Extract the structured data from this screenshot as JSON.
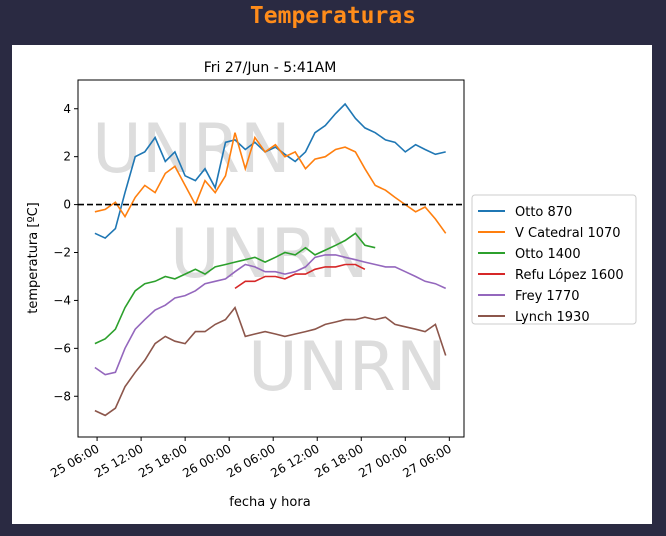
{
  "page": {
    "title": "Temperaturas",
    "title_color": "#ff8c1a"
  },
  "chart_data": {
    "type": "line",
    "title": "Fri 27/Jun - 5:41AM",
    "xlabel": "fecha y hora",
    "ylabel": "temperatura [ºC]",
    "watermark": "UNRN",
    "x_units": "hours since 25 00:00",
    "xlim": [
      3.4,
      56.0
    ],
    "ylim": [
      -9.7,
      5.2
    ],
    "xticks": [
      6,
      12,
      18,
      24,
      30,
      36,
      42,
      48,
      54
    ],
    "xtick_labels": [
      "25 06:00",
      "25 12:00",
      "25 18:00",
      "26 00:00",
      "26 06:00",
      "26 12:00",
      "26 18:00",
      "27 00:00",
      "27 06:00"
    ],
    "yticks": [
      4,
      2,
      0,
      -2,
      -4,
      -6,
      -8
    ],
    "ytick_labels": [
      "4",
      "2",
      "0",
      "−2",
      "−4",
      "−6",
      "−8"
    ],
    "reference_line": {
      "y": 0,
      "style": "dashed",
      "color": "#000000"
    },
    "legend_position": "center-right-outside",
    "x": [
      5.7,
      7.1,
      8.5,
      9.8,
      11.2,
      12.5,
      13.9,
      15.3,
      16.6,
      18.0,
      19.4,
      20.7,
      22.1,
      23.5,
      24.8,
      26.2,
      27.5,
      28.9,
      30.3,
      31.6,
      33.0,
      34.4,
      35.7,
      37.1,
      38.5,
      39.8,
      41.2,
      42.5,
      43.9,
      45.3,
      46.6,
      48.0,
      49.4,
      50.7,
      52.1,
      53.5
    ],
    "series": [
      {
        "name": "Otto 870",
        "color": "#1f77b4",
        "values": [
          -1.2,
          -1.4,
          -1.0,
          0.5,
          2.0,
          2.2,
          2.8,
          1.8,
          2.2,
          1.2,
          1.0,
          1.5,
          0.7,
          2.6,
          2.7,
          2.3,
          2.6,
          2.2,
          2.4,
          2.1,
          1.8,
          2.2,
          3.0,
          3.3,
          3.8,
          4.2,
          3.6,
          3.2,
          3.0,
          2.7,
          2.6,
          2.2,
          2.5,
          2.3,
          2.1,
          2.2
        ]
      },
      {
        "name": "V Catedral 1070",
        "color": "#ff7f0e",
        "values": [
          -0.3,
          -0.2,
          0.1,
          -0.5,
          0.3,
          0.8,
          0.5,
          1.3,
          1.6,
          0.8,
          0.0,
          1.0,
          0.5,
          1.2,
          3.0,
          1.5,
          2.8,
          2.2,
          2.5,
          2.0,
          2.2,
          1.5,
          1.9,
          2.0,
          2.3,
          2.4,
          2.2,
          1.5,
          0.8,
          0.6,
          0.3,
          0.0,
          -0.3,
          -0.1,
          -0.6,
          -1.2
        ]
      },
      {
        "name": "Otto 1400",
        "color": "#2ca02c",
        "values": [
          -5.8,
          -5.6,
          -5.2,
          -4.3,
          -3.6,
          -3.3,
          -3.2,
          -3.0,
          -3.1,
          -2.9,
          -2.7,
          -2.9,
          -2.6,
          -2.5,
          -2.4,
          -2.3,
          -2.2,
          -2.4,
          -2.2,
          -2.0,
          -2.1,
          -1.8,
          -2.1,
          -1.9,
          -1.7,
          -1.5,
          -1.2,
          -1.7,
          -1.8,
          null,
          null,
          null,
          null,
          null,
          null,
          null
        ]
      },
      {
        "name": "Refu López 1600",
        "color": "#d62728",
        "values": [
          null,
          null,
          null,
          null,
          null,
          null,
          null,
          null,
          null,
          null,
          null,
          null,
          null,
          null,
          -3.5,
          -3.2,
          -3.2,
          -3.0,
          -3.0,
          -3.1,
          -2.9,
          -2.9,
          -2.7,
          -2.6,
          -2.6,
          -2.5,
          -2.5,
          -2.7,
          null,
          null,
          null,
          null,
          null,
          null,
          null,
          null
        ]
      },
      {
        "name": "Frey 1770",
        "color": "#9467bd",
        "values": [
          -6.8,
          -7.1,
          -7.0,
          -6.0,
          -5.2,
          -4.8,
          -4.4,
          -4.2,
          -3.9,
          -3.8,
          -3.6,
          -3.3,
          -3.2,
          -3.1,
          -2.8,
          -2.5,
          -2.6,
          -2.8,
          -2.8,
          -2.9,
          -2.8,
          -2.6,
          -2.2,
          -2.1,
          -2.1,
          -2.2,
          -2.3,
          -2.4,
          -2.5,
          -2.6,
          -2.6,
          -2.8,
          -3.0,
          -3.2,
          -3.3,
          -3.5
        ]
      },
      {
        "name": "Lynch 1930",
        "color": "#8c564b",
        "values": [
          -8.6,
          -8.8,
          -8.5,
          -7.6,
          -7.0,
          -6.5,
          -5.8,
          -5.5,
          -5.7,
          -5.8,
          -5.3,
          -5.3,
          -5.0,
          -4.8,
          -4.3,
          -5.5,
          -5.4,
          -5.3,
          -5.4,
          -5.5,
          -5.4,
          -5.3,
          -5.2,
          -5.0,
          -4.9,
          -4.8,
          -4.8,
          -4.7,
          -4.8,
          -4.7,
          -5.0,
          -5.1,
          -5.2,
          -5.3,
          -5.0,
          -6.3
        ]
      }
    ]
  }
}
